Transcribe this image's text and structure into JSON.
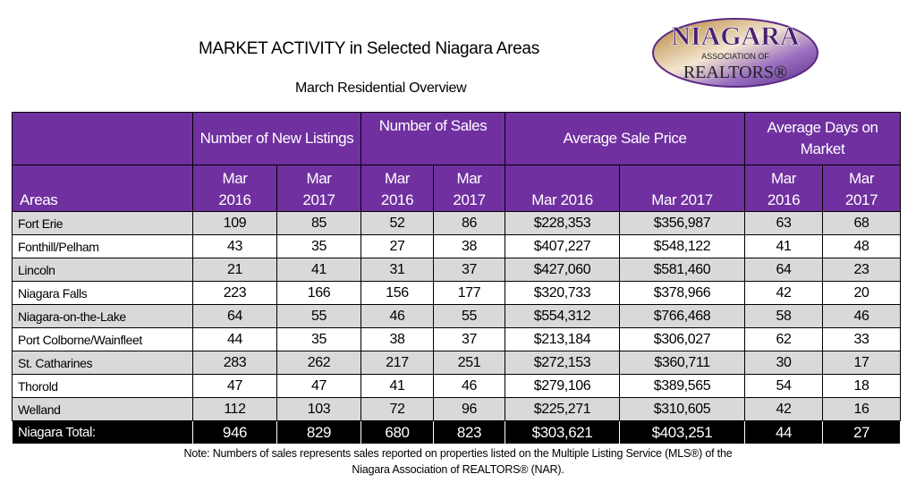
{
  "header": {
    "title": "MARKET ACTIVITY in Selected Niagara Areas",
    "subtitle": "March Residential Overview",
    "logo": {
      "line1": "NIAGARA",
      "line2": "ASSOCIATION OF",
      "line3": "REALTORS®"
    }
  },
  "table": {
    "groups": [
      "Number of New Listings",
      "Number of Sales",
      "Average Sale Price",
      "Average Days on Market"
    ],
    "areas_label": "Areas",
    "periods": [
      "Mar 2016",
      "Mar 2017",
      "Mar 2016",
      "Mar 2017",
      "Mar 2016",
      "Mar 2017",
      "Mar 2016",
      "Mar 2017"
    ],
    "rows": [
      {
        "area": "Fort Erie",
        "values": [
          "109",
          "85",
          "52",
          "86",
          "$228,353",
          "$356,987",
          "63",
          "68"
        ]
      },
      {
        "area": "Fonthill/Pelham",
        "values": [
          "43",
          "35",
          "27",
          "38",
          "$407,227",
          "$548,122",
          "41",
          "48"
        ]
      },
      {
        "area": "Lincoln",
        "values": [
          "21",
          "41",
          "31",
          "37",
          "$427,060",
          "$581,460",
          "64",
          "23"
        ]
      },
      {
        "area": "Niagara Falls",
        "values": [
          "223",
          "166",
          "156",
          "177",
          "$320,733",
          "$378,966",
          "42",
          "20"
        ]
      },
      {
        "area": "Niagara-on-the-Lake",
        "values": [
          "64",
          "55",
          "46",
          "55",
          "$554,312",
          "$766,468",
          "58",
          "46"
        ]
      },
      {
        "area": "Port Colborne/Wainfleet",
        "values": [
          "44",
          "35",
          "38",
          "37",
          "$213,184",
          "$306,027",
          "62",
          "33"
        ]
      },
      {
        "area": "St. Catharines",
        "values": [
          "283",
          "262",
          "217",
          "251",
          "$272,153",
          "$360,711",
          "30",
          "17"
        ]
      },
      {
        "area": "Thorold",
        "values": [
          "47",
          "47",
          "41",
          "46",
          "$279,106",
          "$389,565",
          "54",
          "18"
        ]
      },
      {
        "area": "Welland",
        "values": [
          "112",
          "103",
          "72",
          "96",
          "$225,271",
          "$310,605",
          "42",
          "16"
        ]
      }
    ],
    "total": {
      "area": "Niagara Total:",
      "values": [
        "946",
        "829",
        "680",
        "823",
        "$303,621",
        "$403,251",
        "44",
        "27"
      ]
    }
  },
  "note": {
    "line1": "Note: Numbers of sales represents sales reported on properties listed on the Multiple Listing Service (MLS®) of the",
    "line2": "Niagara Association of REALTORS® (NAR)."
  },
  "colors": {
    "header_bg": "#7030a0",
    "row_gray": "#d9d9d9",
    "total_bg": "#000000"
  }
}
